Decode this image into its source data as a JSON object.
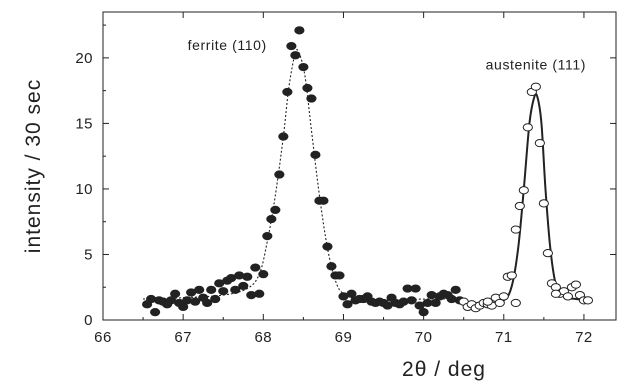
{
  "chart_data": {
    "type": "scatter",
    "xlabel": "2θ / deg",
    "ylabel": "intensity / 30 sec",
    "xlim": [
      66,
      72.4
    ],
    "ylim": [
      0,
      23.5
    ],
    "x_ticks": [
      66,
      67,
      68,
      69,
      70,
      71,
      72
    ],
    "y_ticks": [
      0,
      5,
      10,
      15,
      20
    ],
    "grid": false,
    "annotations": [
      {
        "text": "ferrite (110)",
        "x": 67.55,
        "y": 20.6
      },
      {
        "text": "austenite (111)",
        "x": 71.4,
        "y": 19.1
      }
    ],
    "series": [
      {
        "name": "ferrite (110)",
        "marker": "filled-circle",
        "points": [
          [
            66.55,
            1.2
          ],
          [
            66.6,
            1.6
          ],
          [
            66.65,
            0.6
          ],
          [
            66.7,
            1.5
          ],
          [
            66.75,
            1.4
          ],
          [
            66.8,
            1.2
          ],
          [
            66.85,
            1.5
          ],
          [
            66.9,
            2.0
          ],
          [
            66.95,
            1.3
          ],
          [
            67.0,
            1.0
          ],
          [
            67.05,
            1.5
          ],
          [
            67.1,
            2.1
          ],
          [
            67.15,
            1.4
          ],
          [
            67.2,
            2.3
          ],
          [
            67.25,
            1.7
          ],
          [
            67.3,
            1.3
          ],
          [
            67.35,
            2.3
          ],
          [
            67.4,
            1.6
          ],
          [
            67.45,
            2.8
          ],
          [
            67.5,
            2.2
          ],
          [
            67.55,
            3.0
          ],
          [
            67.6,
            3.2
          ],
          [
            67.65,
            2.3
          ],
          [
            67.7,
            3.4
          ],
          [
            67.75,
            2.6
          ],
          [
            67.8,
            3.3
          ],
          [
            67.85,
            1.9
          ],
          [
            67.9,
            4.0
          ],
          [
            67.95,
            2.0
          ],
          [
            68.0,
            3.5
          ],
          [
            68.05,
            6.4
          ],
          [
            68.1,
            7.7
          ],
          [
            68.15,
            8.4
          ],
          [
            68.2,
            11.1
          ],
          [
            68.25,
            14.0
          ],
          [
            68.3,
            17.4
          ],
          [
            68.35,
            20.9
          ],
          [
            68.4,
            20.2
          ],
          [
            68.45,
            22.1
          ],
          [
            68.5,
            19.3
          ],
          [
            68.55,
            17.7
          ],
          [
            68.6,
            16.9
          ],
          [
            68.65,
            12.6
          ],
          [
            68.7,
            9.1
          ],
          [
            68.75,
            9.1
          ],
          [
            68.8,
            5.6
          ],
          [
            68.85,
            4.1
          ],
          [
            68.9,
            3.4
          ],
          [
            68.95,
            3.4
          ],
          [
            69.0,
            1.8
          ],
          [
            69.05,
            1.2
          ],
          [
            69.1,
            2.0
          ],
          [
            69.15,
            1.5
          ],
          [
            69.2,
            1.6
          ],
          [
            69.25,
            1.6
          ],
          [
            69.3,
            1.8
          ],
          [
            69.35,
            1.4
          ],
          [
            69.4,
            1.3
          ],
          [
            69.45,
            1.4
          ],
          [
            69.5,
            1.3
          ],
          [
            69.55,
            1.1
          ],
          [
            69.6,
            1.7
          ],
          [
            69.65,
            1.3
          ],
          [
            69.7,
            1.2
          ],
          [
            69.75,
            1.4
          ],
          [
            69.8,
            2.4
          ],
          [
            69.85,
            1.5
          ],
          [
            69.9,
            2.4
          ],
          [
            69.95,
            1.1
          ],
          [
            70.0,
            0.6
          ],
          [
            70.05,
            1.3
          ],
          [
            70.1,
            1.9
          ],
          [
            70.15,
            1.3
          ],
          [
            70.2,
            1.8
          ],
          [
            70.25,
            2.0
          ],
          [
            70.3,
            1.9
          ],
          [
            70.35,
            1.6
          ],
          [
            70.4,
            2.3
          ],
          [
            70.45,
            1.5
          ]
        ],
        "fit": [
          [
            66.5,
            1.6
          ],
          [
            67.0,
            1.7
          ],
          [
            67.5,
            1.9
          ],
          [
            67.8,
            2.4
          ],
          [
            67.95,
            3.5
          ],
          [
            68.05,
            6.0
          ],
          [
            68.15,
            9.5
          ],
          [
            68.25,
            14.0
          ],
          [
            68.32,
            17.8
          ],
          [
            68.4,
            20.4
          ],
          [
            68.45,
            20.3
          ],
          [
            68.52,
            18.6
          ],
          [
            68.6,
            14.5
          ],
          [
            68.7,
            9.5
          ],
          [
            68.8,
            5.5
          ],
          [
            68.9,
            3.0
          ],
          [
            69.0,
            2.0
          ],
          [
            69.2,
            1.6
          ],
          [
            69.6,
            1.5
          ],
          [
            70.0,
            1.6
          ],
          [
            70.5,
            1.6
          ]
        ]
      },
      {
        "name": "austenite (111)",
        "marker": "open-circle",
        "points": [
          [
            70.5,
            1.4
          ],
          [
            70.55,
            1.0
          ],
          [
            70.6,
            1.2
          ],
          [
            70.65,
            0.9
          ],
          [
            70.7,
            1.1
          ],
          [
            70.75,
            1.3
          ],
          [
            70.8,
            1.2
          ],
          [
            70.85,
            1.1
          ],
          [
            70.9,
            1.7
          ],
          [
            70.95,
            1.3
          ],
          [
            71.0,
            1.8
          ],
          [
            71.05,
            3.3
          ],
          [
            71.1,
            3.4
          ],
          [
            71.15,
            6.9
          ],
          [
            71.2,
            8.7
          ],
          [
            71.25,
            9.9
          ],
          [
            71.3,
            14.7
          ],
          [
            71.35,
            17.4
          ],
          [
            71.4,
            17.8
          ],
          [
            71.45,
            13.5
          ],
          [
            71.5,
            8.9
          ],
          [
            71.55,
            5.1
          ],
          [
            71.6,
            2.8
          ],
          [
            71.65,
            2.5
          ],
          [
            71.7,
            2.0
          ],
          [
            71.75,
            2.2
          ],
          [
            71.8,
            1.8
          ],
          [
            71.85,
            2.5
          ],
          [
            71.9,
            2.7
          ],
          [
            71.95,
            1.9
          ],
          [
            72.0,
            1.5
          ],
          [
            72.05,
            1.5
          ],
          [
            70.8,
            1.4
          ],
          [
            71.15,
            1.3
          ],
          [
            71.65,
            2.0
          ]
        ],
        "fit": [
          [
            70.5,
            1.3
          ],
          [
            70.8,
            1.3
          ],
          [
            71.0,
            1.5
          ],
          [
            71.1,
            2.6
          ],
          [
            71.18,
            5.5
          ],
          [
            71.25,
            10.0
          ],
          [
            71.32,
            15.0
          ],
          [
            71.38,
            17.0
          ],
          [
            71.42,
            17.0
          ],
          [
            71.47,
            15.0
          ],
          [
            71.52,
            10.0
          ],
          [
            71.58,
            5.5
          ],
          [
            71.65,
            2.7
          ],
          [
            71.75,
            1.8
          ],
          [
            71.9,
            1.6
          ],
          [
            72.1,
            1.5
          ]
        ]
      }
    ]
  }
}
